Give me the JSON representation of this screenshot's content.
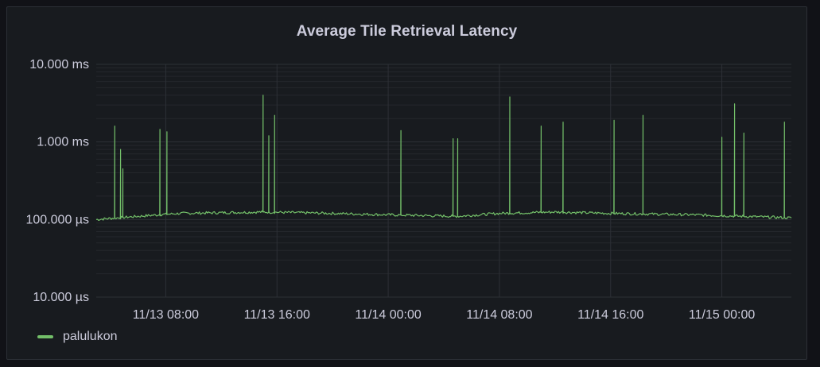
{
  "panel": {
    "title": "Average Tile Retrieval Latency"
  },
  "legend": {
    "label": "palulukon"
  },
  "colors": {
    "series": "#73bf69",
    "grid_major": "#2d3036",
    "grid_minor": "#24272c",
    "text": "#ccccdc",
    "background": "#181b1f"
  },
  "chart_data": {
    "type": "line",
    "title": "Average Tile Retrieval Latency",
    "yscale": "log",
    "ylim": [
      0.01,
      10
    ],
    "yunit": "ms",
    "ytick_values": [
      10,
      1,
      0.1,
      0.01
    ],
    "ytick_labels": [
      "10.000 ms",
      "1.000 ms",
      "100.000 µs",
      "10.000 µs"
    ],
    "xlim": [
      "11/13 03:00",
      "11/15 05:00"
    ],
    "xtick_values": [
      "11/13 08:00",
      "11/13 16:00",
      "11/14 00:00",
      "11/14 08:00",
      "11/14 16:00",
      "11/15 00:00"
    ],
    "xtick_labels": [
      "11/13 08:00",
      "11/13 16:00",
      "11/14 00:00",
      "11/14 08:00",
      "11/14 16:00",
      "11/15 00:00"
    ],
    "grid": true,
    "legend": "bottom-left",
    "series": [
      {
        "name": "palulukon",
        "baseline_ms": [
          [
            "11/13 03:00",
            0.1
          ],
          [
            "11/13 06:00",
            0.11
          ],
          [
            "11/13 09:00",
            0.12
          ],
          [
            "11/13 15:00",
            0.125
          ],
          [
            "11/13 20:00",
            0.12
          ],
          [
            "11/14 00:00",
            0.115
          ],
          [
            "11/14 05:00",
            0.11
          ],
          [
            "11/14 08:00",
            0.12
          ],
          [
            "11/14 12:00",
            0.125
          ],
          [
            "11/14 16:00",
            0.12
          ],
          [
            "11/14 22:00",
            0.115
          ],
          [
            "11/15 05:00",
            0.105
          ]
        ],
        "spikes_ms": [
          [
            "11/13 04:20",
            1.6
          ],
          [
            "11/13 04:45",
            0.8
          ],
          [
            "11/13 04:55",
            0.45
          ],
          [
            "11/13 07:35",
            1.45
          ],
          [
            "11/13 08:05",
            1.35
          ],
          [
            "11/13 15:00",
            4.0
          ],
          [
            "11/13 15:25",
            1.2
          ],
          [
            "11/13 15:50",
            2.2
          ],
          [
            "11/14 00:55",
            1.4
          ],
          [
            "11/14 04:40",
            1.1
          ],
          [
            "11/14 05:00",
            1.1
          ],
          [
            "11/14 08:45",
            3.8
          ],
          [
            "11/14 11:00",
            1.6
          ],
          [
            "11/14 12:35",
            1.8
          ],
          [
            "11/14 16:15",
            1.9
          ],
          [
            "11/14 18:20",
            2.2
          ],
          [
            "11/15 00:00",
            1.15
          ],
          [
            "11/15 00:55",
            3.1
          ],
          [
            "11/15 01:35",
            1.3
          ],
          [
            "11/15 04:30",
            1.8
          ]
        ]
      }
    ]
  }
}
